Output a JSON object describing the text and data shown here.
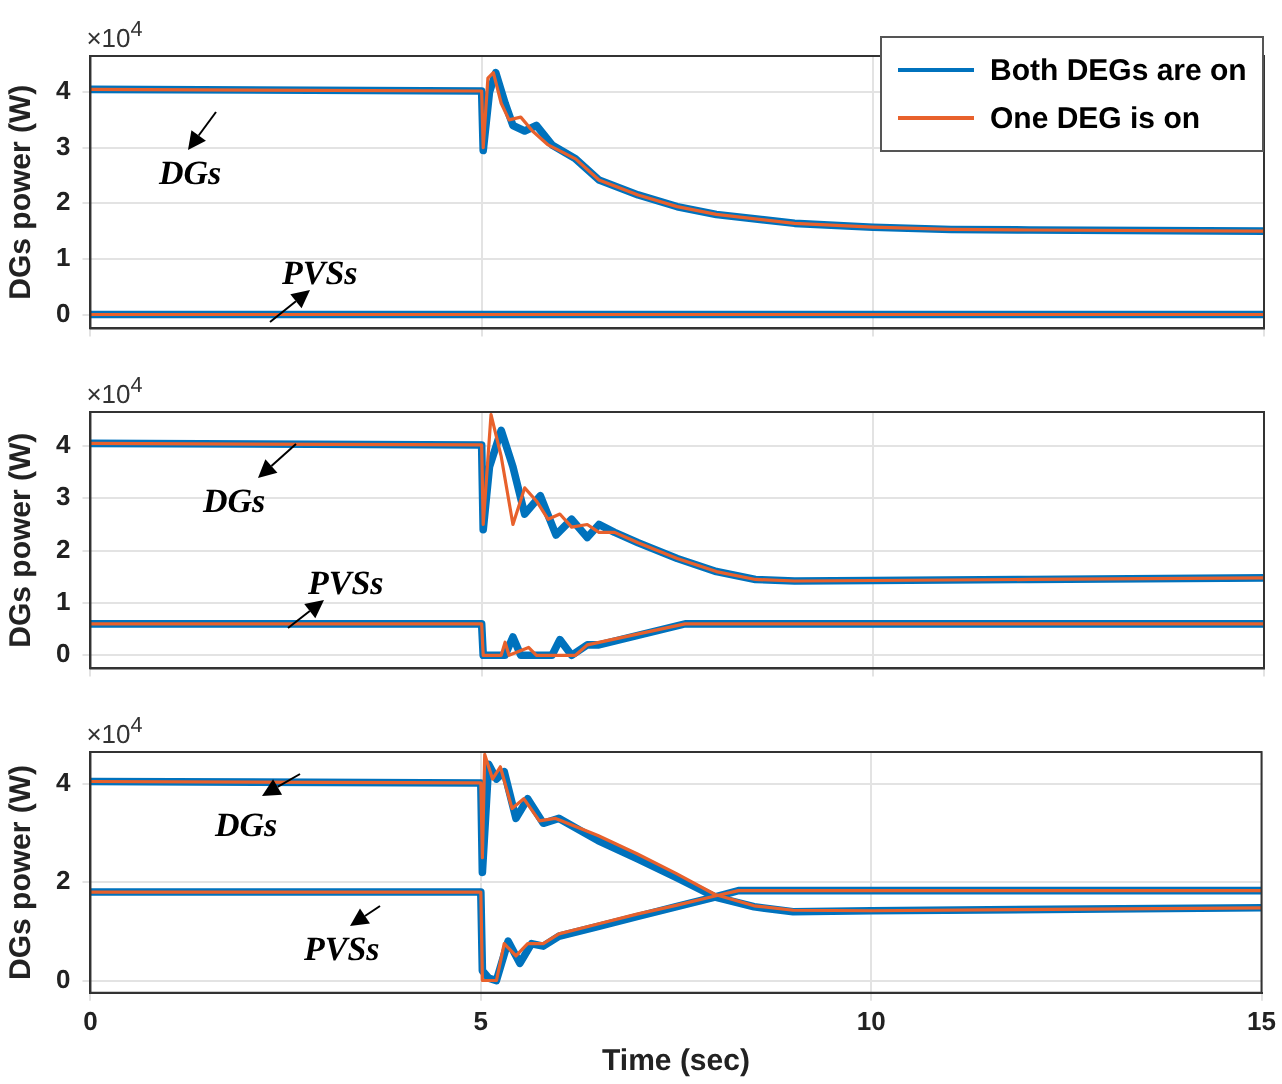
{
  "chart_data": [
    {
      "type": "line",
      "ylabel": "DGs power (W)",
      "xlim": [
        0,
        15
      ],
      "xticks": [
        0,
        5,
        10,
        15
      ],
      "ylim": [
        -0.25,
        4.65
      ],
      "yticks": [
        0,
        1,
        2,
        3,
        4
      ],
      "tick_labels": "y",
      "grid": true,
      "legend": "top right",
      "marker": "none",
      "line_style": "solid",
      "annotations": [
        "×10$^{4}$",
        "DGs",
        "PVSs"
      ],
      "series": [
        {
          "name": "Both DEGs are on",
          "color": "#0072bd",
          "x": [
            0,
            5,
            5.02,
            5.1,
            5.18,
            5.3,
            5.4,
            5.55,
            5.7,
            5.9,
            6.2,
            6.5,
            7,
            7.5,
            8,
            9,
            10,
            11,
            12,
            15
          ],
          "values": [
            4.05,
            4.02,
            2.95,
            4.0,
            4.35,
            3.8,
            3.4,
            3.3,
            3.4,
            3.05,
            2.8,
            2.42,
            2.15,
            1.94,
            1.8,
            1.64,
            1.57,
            1.53,
            1.52,
            1.5
          ]
        },
        {
          "color": "#0072bd",
          "x": [
            0,
            15
          ],
          "values": [
            0,
            0
          ]
        },
        {
          "name": "One DEG is on",
          "color": "#e8612c",
          "x": [
            0,
            5,
            5.02,
            5.08,
            5.15,
            5.25,
            5.35,
            5.5,
            5.65,
            5.85,
            6.2,
            6.5,
            7,
            7.5,
            8,
            9,
            10,
            11,
            12,
            15
          ],
          "values": [
            4.05,
            4.02,
            3.0,
            4.25,
            4.35,
            3.8,
            3.5,
            3.55,
            3.3,
            3.05,
            2.8,
            2.42,
            2.15,
            1.94,
            1.8,
            1.64,
            1.57,
            1.53,
            1.52,
            1.5
          ]
        },
        {
          "color": "#e8612c",
          "x": [
            0,
            15
          ],
          "values": [
            0,
            0
          ]
        }
      ]
    },
    {
      "type": "line",
      "ylabel": "DGs power (W)",
      "xlim": [
        0,
        15
      ],
      "xticks": [
        0,
        5,
        10,
        15
      ],
      "ylim": [
        -0.25,
        4.65
      ],
      "yticks": [
        0,
        1,
        2,
        3,
        4
      ],
      "tick_labels": "y",
      "grid": true,
      "marker": "none",
      "line_style": "solid",
      "annotations": [
        "×10$^{4}$",
        "DGs",
        "PVSs"
      ],
      "series": [
        {
          "color": "#0072bd",
          "x": [
            0,
            5,
            5.02,
            5.1,
            5.25,
            5.4,
            5.55,
            5.75,
            5.95,
            6.15,
            6.35,
            6.5,
            6.7,
            7,
            7.5,
            8,
            8.5,
            9,
            10,
            12,
            15
          ],
          "values": [
            4.05,
            4.02,
            2.4,
            3.6,
            4.3,
            3.6,
            2.7,
            3.05,
            2.3,
            2.6,
            2.25,
            2.5,
            2.35,
            2.15,
            1.85,
            1.6,
            1.45,
            1.42,
            1.43,
            1.45,
            1.48
          ]
        },
        {
          "color": "#0072bd",
          "x": [
            0,
            5,
            5.02,
            5.3,
            5.4,
            5.5,
            5.9,
            6.0,
            6.15,
            6.35,
            6.5,
            7.6,
            15
          ],
          "values": [
            0.6,
            0.6,
            0,
            0,
            0.35,
            0,
            0,
            0.3,
            0,
            0.2,
            0.2,
            0.6,
            0.6
          ]
        },
        {
          "color": "#e8612c",
          "x": [
            0,
            5,
            5.02,
            5.12,
            5.25,
            5.4,
            5.55,
            5.7,
            5.85,
            6.0,
            6.15,
            6.35,
            6.5,
            6.7,
            7,
            7.5,
            8,
            8.5,
            9,
            10,
            12,
            15
          ],
          "values": [
            4.05,
            4.02,
            2.5,
            4.6,
            3.8,
            2.5,
            3.2,
            2.95,
            2.6,
            2.7,
            2.45,
            2.5,
            2.35,
            2.35,
            2.15,
            1.85,
            1.6,
            1.45,
            1.42,
            1.43,
            1.45,
            1.48
          ]
        },
        {
          "color": "#e8612c",
          "x": [
            0,
            5,
            5.02,
            5.25,
            5.3,
            5.35,
            5.6,
            5.7,
            6.2,
            6.35,
            7.6,
            15
          ],
          "values": [
            0.6,
            0.6,
            0,
            0,
            0.25,
            0,
            0.15,
            0,
            0,
            0.2,
            0.6,
            0.6
          ]
        }
      ]
    },
    {
      "type": "line",
      "xlabel": "Time (sec)",
      "ylabel": "DGs power (W)",
      "xlim": [
        0,
        15
      ],
      "xticks": [
        0,
        5,
        10,
        15
      ],
      "ylim": [
        -0.25,
        4.65
      ],
      "yticks": [
        0,
        2,
        4
      ],
      "grid": true,
      "marker": "none",
      "line_style": "solid",
      "annotations": [
        "×10$^{4}$",
        "DGs",
        "PVSs"
      ],
      "series": [
        {
          "color": "#0072bd",
          "x": [
            0,
            5,
            5.02,
            5.1,
            5.2,
            5.3,
            5.45,
            5.6,
            5.8,
            6.0,
            6.5,
            7,
            7.5,
            8,
            8.5,
            9,
            10,
            15
          ],
          "values": [
            4.05,
            4.02,
            2.2,
            4.4,
            4.1,
            4.25,
            3.3,
            3.7,
            3.2,
            3.3,
            2.85,
            2.48,
            2.1,
            1.7,
            1.5,
            1.4,
            1.42,
            1.48
          ]
        },
        {
          "color": "#0072bd",
          "x": [
            0,
            5,
            5.02,
            5.1,
            5.2,
            5.35,
            5.5,
            5.65,
            5.8,
            6.0,
            6.5,
            7,
            7.5,
            8,
            8.3,
            15
          ],
          "values": [
            1.8,
            1.8,
            0.2,
            0.05,
            0,
            0.8,
            0.35,
            0.75,
            0.7,
            0.9,
            1.1,
            1.3,
            1.5,
            1.7,
            1.83,
            1.83
          ]
        },
        {
          "color": "#e8612c",
          "x": [
            0,
            5,
            5.02,
            5.05,
            5.15,
            5.25,
            5.4,
            5.55,
            5.75,
            5.95,
            6.5,
            7,
            7.5,
            8,
            8.5,
            9,
            10,
            15
          ],
          "values": [
            4.05,
            4.02,
            2.5,
            4.6,
            4.1,
            4.35,
            3.5,
            3.7,
            3.25,
            3.3,
            2.95,
            2.58,
            2.18,
            1.75,
            1.52,
            1.43,
            1.42,
            1.48
          ]
        },
        {
          "color": "#e8612c",
          "x": [
            0,
            5,
            5.02,
            5.2,
            5.3,
            5.45,
            5.6,
            5.8,
            6.0,
            6.5,
            7,
            7.5,
            8,
            8.3,
            15
          ],
          "values": [
            1.8,
            1.8,
            0,
            0,
            0.75,
            0.5,
            0.75,
            0.75,
            0.95,
            1.15,
            1.35,
            1.53,
            1.72,
            1.83,
            1.83
          ]
        }
      ]
    }
  ]
}
